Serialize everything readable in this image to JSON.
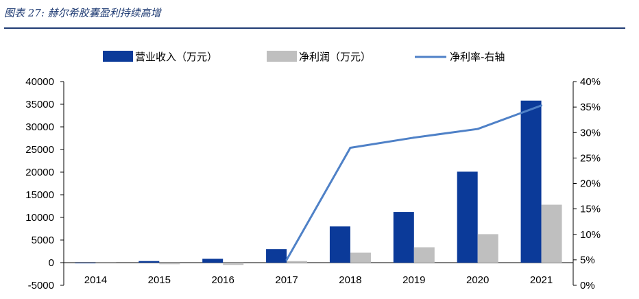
{
  "figure_title": "图表 27: 赫尔希胶囊盈利持续高增",
  "colors": {
    "revenue": "#0b3a99",
    "profit": "#bfbfbf",
    "margin": "#4f81c7",
    "title": "#1f3b73"
  },
  "chart_data": {
    "type": "bar",
    "categories": [
      "2014",
      "2015",
      "2016",
      "2017",
      "2018",
      "2019",
      "2020",
      "2021"
    ],
    "series": [
      {
        "name": "营业收入（万元）",
        "type": "bar",
        "axis": "left",
        "values": [
          0,
          350,
          850,
          3000,
          8000,
          11200,
          20100,
          35800
        ]
      },
      {
        "name": "净利润（万元）",
        "type": "bar",
        "axis": "left",
        "values": [
          -200,
          -350,
          -500,
          350,
          2200,
          3400,
          6300,
          12800
        ]
      },
      {
        "name": "净利率-右轴",
        "type": "line",
        "axis": "right",
        "values": [
          null,
          null,
          null,
          5,
          27,
          29,
          30.7,
          35.3
        ]
      }
    ],
    "y_left": {
      "min": -5000,
      "max": 40000,
      "ticks": [
        "-5000",
        "0",
        "5000",
        "10000",
        "15000",
        "20000",
        "25000",
        "30000",
        "35000",
        "40000"
      ]
    },
    "y_right": {
      "min": 0,
      "max": 40,
      "ticks": [
        "0%",
        "5%",
        "10%",
        "15%",
        "20%",
        "25%",
        "30%",
        "35%",
        "40%"
      ]
    },
    "legend_position": "top",
    "grid": false
  }
}
